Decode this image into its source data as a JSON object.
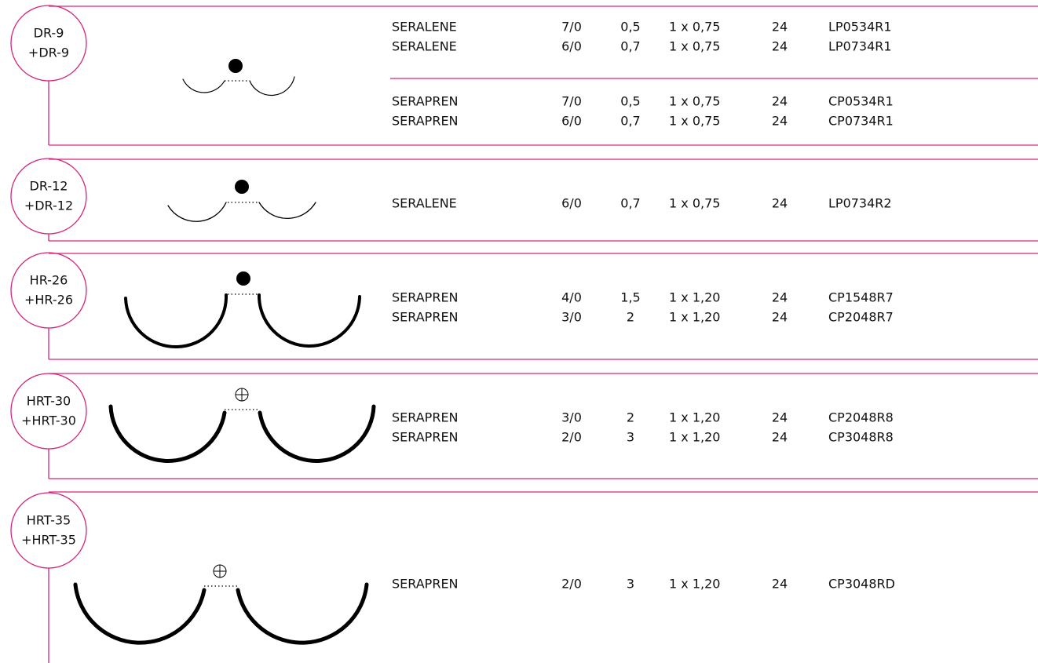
{
  "sections": [
    {
      "label": [
        "DR-9",
        "+DR-9"
      ],
      "groups": [
        [
          [
            "SERALENE",
            "7/0",
            "0,5",
            "1 x 0,75",
            "24",
            "LP0534R1"
          ],
          [
            "SERALENE",
            "6/0",
            "0,7",
            "1 x 0,75",
            "24",
            "LP0734R1"
          ]
        ],
        [
          [
            "SERAPREN",
            "7/0",
            "0,5",
            "1 x 0,75",
            "24",
            "CP0534R1"
          ],
          [
            "SERAPREN",
            "6/0",
            "0,7",
            "1 x 0,75",
            "24",
            "CP0734R1"
          ]
        ]
      ]
    },
    {
      "label": [
        "DR-12",
        "+DR-12"
      ],
      "groups": [
        [
          [
            "SERALENE",
            "6/0",
            "0,7",
            "1 x 0,75",
            "24",
            "LP0734R2"
          ]
        ]
      ]
    },
    {
      "label": [
        "HR-26",
        "+HR-26"
      ],
      "groups": [
        [
          [
            "SERAPREN",
            "4/0",
            "1,5",
            "1 x 1,20",
            "24",
            "CP1548R7"
          ],
          [
            "SERAPREN",
            "3/0",
            "2",
            "1 x 1,20",
            "24",
            "CP2048R7"
          ]
        ]
      ]
    },
    {
      "label": [
        "HRT-30",
        "+HRT-30"
      ],
      "groups": [
        [
          [
            "SERAPREN",
            "3/0",
            "2",
            "1 x 1,20",
            "24",
            "CP2048R8"
          ],
          [
            "SERAPREN",
            "2/0",
            "3",
            "1 x 1,20",
            "24",
            "CP3048R8"
          ]
        ]
      ]
    },
    {
      "label": [
        "HRT-35",
        "+HRT-35"
      ],
      "groups": [
        [
          [
            "SERAPREN",
            "2/0",
            "3",
            "1 x 1,20",
            "24",
            "CP3048RD"
          ]
        ]
      ]
    }
  ]
}
